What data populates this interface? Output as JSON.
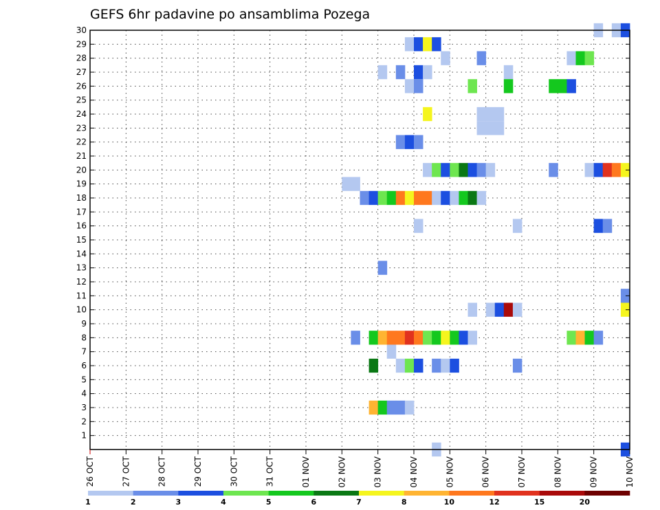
{
  "chart_data": {
    "type": "heatmap",
    "title": "GEFS 6hr padavine po ansamblima Pozega",
    "xlabel": "",
    "ylabel": "",
    "x_ticks": [
      "26 OCT",
      "27 OCT",
      "28 OCT",
      "29 OCT",
      "30 OCT",
      "31 OCT",
      "01 NOV",
      "02 NOV",
      "03 NOV",
      "04 NOV",
      "05 NOV",
      "06 NOV",
      "07 NOV",
      "08 NOV",
      "09 NOV",
      "10 NOV"
    ],
    "y_ticks": [
      "1",
      "2",
      "3",
      "4",
      "5",
      "6",
      "7",
      "8",
      "9",
      "10",
      "11",
      "12",
      "13",
      "14",
      "15",
      "16",
      "17",
      "18",
      "19",
      "20",
      "21",
      "22",
      "23",
      "24",
      "25",
      "26",
      "27",
      "28",
      "29",
      "30"
    ],
    "x_unit": "6-hour step from 26 OCT 00Z",
    "grid": true,
    "levels": [
      "1",
      "2",
      "3",
      "4",
      "5",
      "6",
      "7",
      "8",
      "10",
      "12",
      "15",
      "20"
    ],
    "palette": [
      "#b4c8f0",
      "#6a8ee8",
      "#1c4fe0",
      "#6ee650",
      "#14c81e",
      "#0a7814",
      "#f5f51e",
      "#ffb432",
      "#ff781e",
      "#e1321e",
      "#aa0a0a",
      "#6e0000"
    ],
    "cells": [
      {
        "member": 30,
        "step": 57,
        "level": 1
      },
      {
        "member": 30,
        "step": 59,
        "level": 1
      },
      {
        "member": 30,
        "step": 60,
        "level": 3
      },
      {
        "member": 29,
        "step": 36,
        "level": 1
      },
      {
        "member": 29,
        "step": 37,
        "level": 3
      },
      {
        "member": 29,
        "step": 38,
        "level": 7
      },
      {
        "member": 29,
        "step": 39,
        "level": 3
      },
      {
        "member": 28,
        "step": 40,
        "level": 1
      },
      {
        "member": 28,
        "step": 44,
        "level": 2
      },
      {
        "member": 28,
        "step": 54,
        "level": 1
      },
      {
        "member": 28,
        "step": 55,
        "level": 5
      },
      {
        "member": 28,
        "step": 56,
        "level": 4
      },
      {
        "member": 27,
        "step": 33,
        "level": 1
      },
      {
        "member": 27,
        "step": 35,
        "level": 2
      },
      {
        "member": 27,
        "step": 37,
        "level": 3
      },
      {
        "member": 27,
        "step": 38,
        "level": 1
      },
      {
        "member": 27,
        "step": 47,
        "level": 1
      },
      {
        "member": 26,
        "step": 36,
        "level": 1
      },
      {
        "member": 26,
        "step": 37,
        "level": 2
      },
      {
        "member": 26,
        "step": 43,
        "level": 4
      },
      {
        "member": 26,
        "step": 47,
        "level": 5
      },
      {
        "member": 26,
        "step": 52,
        "level": 5
      },
      {
        "member": 26,
        "step": 53,
        "level": 5
      },
      {
        "member": 26,
        "step": 54,
        "level": 3
      },
      {
        "member": 24,
        "step": 38,
        "level": 7
      },
      {
        "member": 24,
        "step": 44,
        "level": 1
      },
      {
        "member": 24,
        "step": 45,
        "level": 1
      },
      {
        "member": 24,
        "step": 46,
        "level": 1
      },
      {
        "member": 23,
        "step": 44,
        "level": 1
      },
      {
        "member": 23,
        "step": 45,
        "level": 1
      },
      {
        "member": 23,
        "step": 46,
        "level": 1
      },
      {
        "member": 22,
        "step": 35,
        "level": 2
      },
      {
        "member": 22,
        "step": 36,
        "level": 3
      },
      {
        "member": 22,
        "step": 37,
        "level": 2
      },
      {
        "member": 20,
        "step": 38,
        "level": 1
      },
      {
        "member": 20,
        "step": 39,
        "level": 4
      },
      {
        "member": 20,
        "step": 40,
        "level": 3
      },
      {
        "member": 20,
        "step": 41,
        "level": 4
      },
      {
        "member": 20,
        "step": 42,
        "level": 6
      },
      {
        "member": 20,
        "step": 43,
        "level": 3
      },
      {
        "member": 20,
        "step": 44,
        "level": 2
      },
      {
        "member": 20,
        "step": 45,
        "level": 1
      },
      {
        "member": 20,
        "step": 52,
        "level": 2
      },
      {
        "member": 20,
        "step": 56,
        "level": 1
      },
      {
        "member": 20,
        "step": 57,
        "level": 3
      },
      {
        "member": 20,
        "step": 58,
        "level": 10
      },
      {
        "member": 20,
        "step": 59,
        "level": 9
      },
      {
        "member": 20,
        "step": 60,
        "level": 7
      },
      {
        "member": 19,
        "step": 29,
        "level": 1
      },
      {
        "member": 19,
        "step": 30,
        "level": 1
      },
      {
        "member": 18,
        "step": 31,
        "level": 2
      },
      {
        "member": 18,
        "step": 32,
        "level": 3
      },
      {
        "member": 18,
        "step": 33,
        "level": 4
      },
      {
        "member": 18,
        "step": 34,
        "level": 5
      },
      {
        "member": 18,
        "step": 35,
        "level": 9
      },
      {
        "member": 18,
        "step": 36,
        "level": 7
      },
      {
        "member": 18,
        "step": 37,
        "level": 9
      },
      {
        "member": 18,
        "step": 38,
        "level": 9
      },
      {
        "member": 18,
        "step": 39,
        "level": 1
      },
      {
        "member": 18,
        "step": 40,
        "level": 3
      },
      {
        "member": 18,
        "step": 41,
        "level": 1
      },
      {
        "member": 18,
        "step": 42,
        "level": 5
      },
      {
        "member": 18,
        "step": 43,
        "level": 6
      },
      {
        "member": 18,
        "step": 44,
        "level": 1
      },
      {
        "member": 16,
        "step": 37,
        "level": 1
      },
      {
        "member": 16,
        "step": 48,
        "level": 1
      },
      {
        "member": 16,
        "step": 57,
        "level": 3
      },
      {
        "member": 16,
        "step": 58,
        "level": 2
      },
      {
        "member": 13,
        "step": 33,
        "level": 2
      },
      {
        "member": 11,
        "step": 60,
        "level": 2
      },
      {
        "member": 10,
        "step": 43,
        "level": 1
      },
      {
        "member": 10,
        "step": 45,
        "level": 1
      },
      {
        "member": 10,
        "step": 46,
        "level": 3
      },
      {
        "member": 10,
        "step": 47,
        "level": 11
      },
      {
        "member": 10,
        "step": 48,
        "level": 1
      },
      {
        "member": 10,
        "step": 60,
        "level": 7
      },
      {
        "member": 8,
        "step": 30,
        "level": 2
      },
      {
        "member": 8,
        "step": 32,
        "level": 5
      },
      {
        "member": 8,
        "step": 33,
        "level": 8
      },
      {
        "member": 8,
        "step": 34,
        "level": 9
      },
      {
        "member": 8,
        "step": 35,
        "level": 9
      },
      {
        "member": 8,
        "step": 36,
        "level": 10
      },
      {
        "member": 8,
        "step": 37,
        "level": 9
      },
      {
        "member": 8,
        "step": 38,
        "level": 4
      },
      {
        "member": 8,
        "step": 39,
        "level": 5
      },
      {
        "member": 8,
        "step": 40,
        "level": 7
      },
      {
        "member": 8,
        "step": 41,
        "level": 5
      },
      {
        "member": 8,
        "step": 42,
        "level": 3
      },
      {
        "member": 8,
        "step": 43,
        "level": 1
      },
      {
        "member": 8,
        "step": 54,
        "level": 4
      },
      {
        "member": 8,
        "step": 55,
        "level": 8
      },
      {
        "member": 8,
        "step": 56,
        "level": 5
      },
      {
        "member": 8,
        "step": 57,
        "level": 2
      },
      {
        "member": 7,
        "step": 34,
        "level": 1
      },
      {
        "member": 6,
        "step": 32,
        "level": 6
      },
      {
        "member": 6,
        "step": 35,
        "level": 1
      },
      {
        "member": 6,
        "step": 36,
        "level": 4
      },
      {
        "member": 6,
        "step": 37,
        "level": 3
      },
      {
        "member": 6,
        "step": 39,
        "level": 2
      },
      {
        "member": 6,
        "step": 40,
        "level": 1
      },
      {
        "member": 6,
        "step": 41,
        "level": 3
      },
      {
        "member": 6,
        "step": 48,
        "level": 2
      },
      {
        "member": 3,
        "step": 32,
        "level": 8
      },
      {
        "member": 3,
        "step": 33,
        "level": 5
      },
      {
        "member": 3,
        "step": 34,
        "level": 2
      },
      {
        "member": 3,
        "step": 35,
        "level": 2
      },
      {
        "member": 3,
        "step": 36,
        "level": 1
      },
      {
        "member": 0,
        "step": 39,
        "level": 1
      },
      {
        "member": 0,
        "step": 60,
        "level": 3
      }
    ]
  }
}
